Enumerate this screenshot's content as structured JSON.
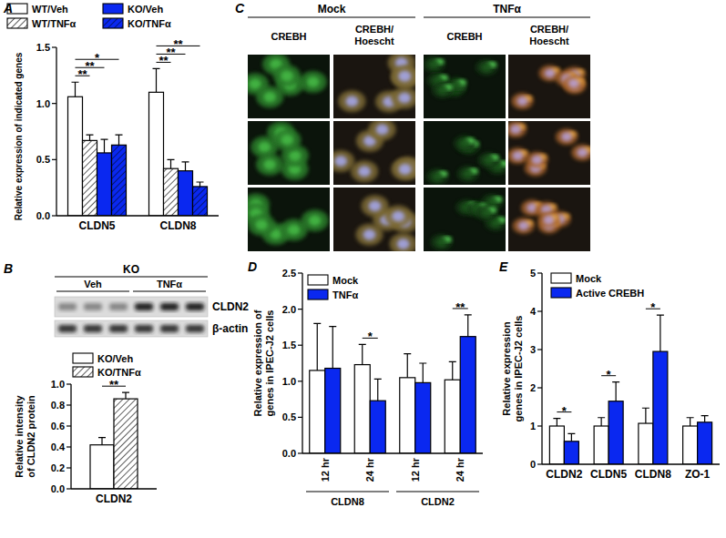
{
  "chart_data": [
    {
      "type": "bar",
      "title": "A",
      "ylabel": "Relative expression of indicated genes",
      "categories": [
        "CLDN5",
        "CLDN8"
      ],
      "series": [
        {
          "name": "WT/Veh",
          "color": "#ffffff",
          "values": [
            1.06,
            1.1
          ],
          "errors": [
            0.13,
            0.21
          ]
        },
        {
          "name": "WT/TNFα",
          "color": "#ffffff",
          "values": [
            0.67,
            0.42
          ],
          "errors": [
            0.05,
            0.08
          ]
        },
        {
          "name": "KO/Veh",
          "color": "#0a28f0",
          "values": [
            0.56,
            0.4
          ],
          "errors": [
            0.12,
            0.08
          ]
        },
        {
          "name": "KO/TNFα",
          "color": "#0a28f0",
          "values": [
            0.63,
            0.26
          ],
          "errors": [
            0.09,
            0.04
          ]
        }
      ],
      "ylim": [
        0,
        1.5
      ],
      "yticks": [
        {
          "value": 0,
          "label": "0.0"
        },
        {
          "value": 0.5,
          "label": "0.5"
        },
        {
          "value": 1,
          "label": "1.0"
        },
        {
          "value": 1.5,
          "label": "1.5"
        }
      ],
      "annotations": [
        {
          "category": 0,
          "series": [
            0,
            1
          ],
          "text": "**"
        },
        {
          "category": 0,
          "series": [
            0,
            2
          ],
          "text": "**"
        },
        {
          "category": 0,
          "series": [
            0,
            3
          ],
          "text": "*"
        },
        {
          "category": 1,
          "series": [
            0,
            1
          ],
          "text": "**"
        },
        {
          "category": 1,
          "series": [
            0,
            2
          ],
          "text": "**"
        },
        {
          "category": 1,
          "series": [
            0,
            3
          ],
          "text": "**"
        }
      ]
    },
    {
      "type": "bar",
      "ylabel": "Relative intensity of CLDN2 protein",
      "categories": [
        "CLDN2"
      ],
      "series": [
        {
          "name": "KO/Veh",
          "color": "#ffffff",
          "values": [
            0.42
          ],
          "errors": [
            0.07
          ]
        },
        {
          "name": "KO/TNFα",
          "color": "#ffffff",
          "values": [
            0.86
          ],
          "errors": [
            0.06
          ]
        }
      ],
      "ylim": [
        0,
        1
      ],
      "yticks": [
        {
          "value": 0,
          "label": "0.0"
        },
        {
          "value": 0.2,
          "label": "0.2"
        },
        {
          "value": 0.4,
          "label": "0.4"
        },
        {
          "value": 0.6,
          "label": "0.6"
        },
        {
          "value": 0.8,
          "label": "0.8"
        },
        {
          "value": 1,
          "label": "1.0"
        }
      ],
      "annotations": [
        {
          "category": 0,
          "series": [
            0,
            1
          ],
          "text": "**"
        }
      ]
    },
    {
      "type": "bar",
      "title": "D",
      "ylabel": "Relative expression of genes in IPEC-J2 cells",
      "categories": [
        "12 hr",
        "24 hr",
        "12 hr",
        "24 hr"
      ],
      "groups": [
        {
          "label": "CLDN8",
          "size": 2
        },
        {
          "label": "CLDN2",
          "size": 2
        }
      ],
      "series": [
        {
          "name": "Mock",
          "color": "#ffffff",
          "values": [
            1.15,
            1.23,
            1.05,
            1.02
          ],
          "errors": [
            0.65,
            0.28,
            0.33,
            0.25
          ]
        },
        {
          "name": "TNFα",
          "color": "#0a28f0",
          "values": [
            1.18,
            0.73,
            0.98,
            1.62
          ],
          "errors": [
            0.58,
            0.3,
            0.27,
            0.3
          ]
        }
      ],
      "ylim": [
        0,
        2.5
      ],
      "yticks": [
        {
          "value": 0,
          "label": "0.0"
        },
        {
          "value": 0.5,
          "label": "0.5"
        },
        {
          "value": 1,
          "label": "1.0"
        },
        {
          "value": 1.5,
          "label": "1.5"
        },
        {
          "value": 2,
          "label": "2.0"
        },
        {
          "value": 2.5,
          "label": "2.5"
        }
      ],
      "annotations": [
        {
          "category": 1,
          "series": [
            0,
            1
          ],
          "text": "*"
        },
        {
          "category": 3,
          "series": [
            0,
            1
          ],
          "text": "**"
        }
      ]
    },
    {
      "type": "bar",
      "title": "E",
      "ylabel": "Relative expression genes in IPEC-J2 cells",
      "categories": [
        "CLDN2",
        "CLDN5",
        "CLDN8",
        "ZO-1"
      ],
      "series": [
        {
          "name": "Mock",
          "color": "#ffffff",
          "values": [
            1.0,
            1.0,
            1.07,
            1.0
          ],
          "errors": [
            0.2,
            0.22,
            0.4,
            0.22
          ]
        },
        {
          "name": "Active CREBH",
          "color": "#0a28f0",
          "values": [
            0.6,
            1.65,
            2.95,
            1.1
          ],
          "errors": [
            0.2,
            0.5,
            0.95,
            0.17
          ]
        }
      ],
      "ylim": [
        0,
        5
      ],
      "yticks": [
        0,
        1,
        2,
        3,
        4,
        5
      ],
      "annotations": [
        {
          "category": 0,
          "series": [
            0,
            1
          ],
          "text": "*"
        },
        {
          "category": 1,
          "series": [
            0,
            1
          ],
          "text": "*"
        },
        {
          "category": 2,
          "series": [
            0,
            1
          ],
          "text": "*"
        }
      ]
    }
  ],
  "blot": {
    "title": "B",
    "group": "KO",
    "lanes": [
      "Veh",
      "TNFα"
    ],
    "bands": [
      "CLDN2",
      "β-actin"
    ]
  },
  "micrographs": {
    "title": "C",
    "conditions": [
      "Mock",
      "TNFα"
    ],
    "channels": [
      "CREBH",
      "CREBH/ Hoescht"
    ]
  }
}
